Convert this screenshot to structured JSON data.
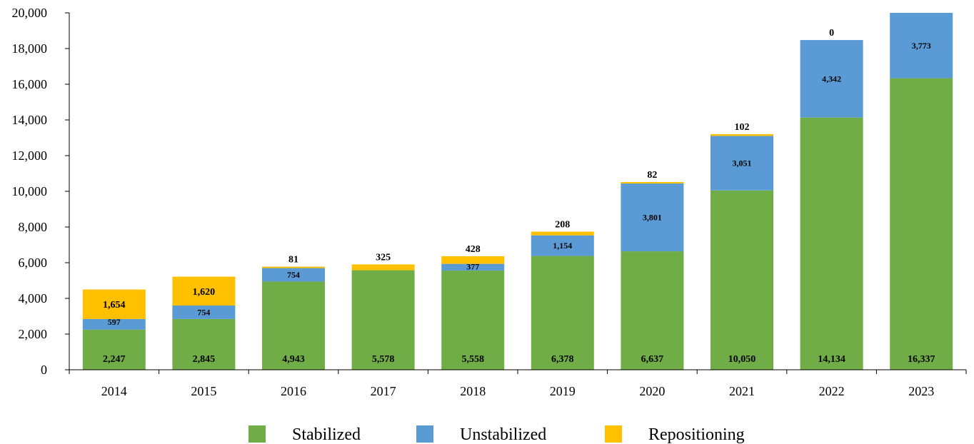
{
  "chart_data": {
    "type": "bar",
    "stacked": true,
    "categories": [
      "2014",
      "2015",
      "2016",
      "2017",
      "2018",
      "2019",
      "2020",
      "2021",
      "2022",
      "2023"
    ],
    "series": [
      {
        "name": "Stabilized",
        "color": "#70AD47",
        "values": [
          2247,
          2845,
          4943,
          5578,
          5558,
          6378,
          6637,
          10050,
          14134,
          16337
        ],
        "labels": [
          "2,247",
          "2,845",
          "4,943",
          "5,578",
          "5,558",
          "6,378",
          "6,637",
          "10,050",
          "14,134",
          "16,337"
        ]
      },
      {
        "name": "Unstabilized",
        "color": "#5B9BD5",
        "values": [
          597,
          754,
          754,
          0,
          377,
          1154,
          3801,
          3051,
          4342,
          3773
        ],
        "labels": [
          "597",
          "754",
          "754",
          "",
          "377",
          "1,154",
          "3,801",
          "3,051",
          "4,342",
          "3,773"
        ]
      },
      {
        "name": "Repositioning",
        "color": "#FFC000",
        "values": [
          1654,
          1620,
          81,
          325,
          428,
          208,
          82,
          102,
          0,
          0
        ],
        "labels": [
          "1,654",
          "1,620",
          "81",
          "325",
          "428",
          "208",
          "82",
          "102",
          "0",
          ""
        ]
      }
    ],
    "y_ticks": [
      "0",
      "2,000",
      "4,000",
      "6,000",
      "8,000",
      "10,000",
      "12,000",
      "14,000",
      "16,000",
      "18,000",
      "20,000"
    ],
    "ylim": [
      0,
      20000
    ],
    "xlabel": "",
    "ylabel": "",
    "title": "",
    "grid": false,
    "legend_position": "bottom"
  }
}
